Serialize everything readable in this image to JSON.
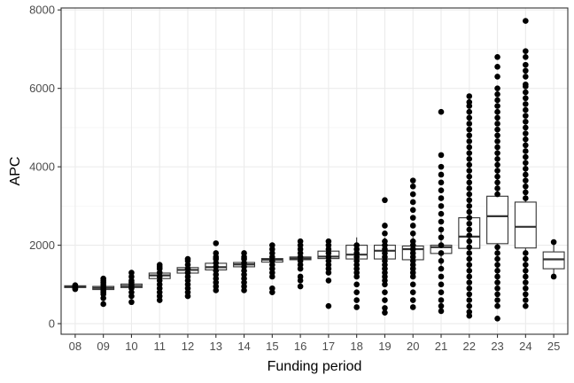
{
  "chart_data": {
    "type": "box",
    "xlabel": "Funding period",
    "ylabel": "APC",
    "ylim": [
      -270,
      8050
    ],
    "yticks": [
      0,
      2000,
      4000,
      6000,
      8000
    ],
    "grid": true,
    "theme": "bw",
    "categories": [
      "08",
      "09",
      "10",
      "11",
      "12",
      "13",
      "14",
      "15",
      "16",
      "17",
      "18",
      "19",
      "20",
      "21",
      "22",
      "23",
      "24",
      "25"
    ],
    "boxes": [
      {
        "period": "08",
        "whisker_low": 900,
        "q1": 920,
        "median": 945,
        "q3": 965,
        "whisker_high": 985
      },
      {
        "period": "09",
        "whisker_low": 800,
        "q1": 870,
        "median": 910,
        "q3": 950,
        "whisker_high": 1000
      },
      {
        "period": "10",
        "whisker_low": 850,
        "q1": 920,
        "median": 960,
        "q3": 1010,
        "whisker_high": 1080
      },
      {
        "period": "11",
        "whisker_low": 1050,
        "q1": 1150,
        "median": 1230,
        "q3": 1290,
        "whisker_high": 1380
      },
      {
        "period": "12",
        "whisker_low": 1150,
        "q1": 1290,
        "median": 1370,
        "q3": 1430,
        "whisker_high": 1550
      },
      {
        "period": "13",
        "whisker_low": 1250,
        "q1": 1370,
        "median": 1440,
        "q3": 1540,
        "whisker_high": 1650
      },
      {
        "period": "14",
        "whisker_low": 1350,
        "q1": 1450,
        "median": 1510,
        "q3": 1560,
        "whisker_high": 1650
      },
      {
        "period": "15",
        "whisker_low": 1450,
        "q1": 1570,
        "median": 1630,
        "q3": 1660,
        "whisker_high": 1750
      },
      {
        "period": "16",
        "whisker_low": 1550,
        "q1": 1630,
        "median": 1660,
        "q3": 1700,
        "whisker_high": 1800
      },
      {
        "period": "17",
        "whisker_low": 1500,
        "q1": 1660,
        "median": 1710,
        "q3": 1850,
        "whisker_high": 2000
      },
      {
        "period": "18",
        "whisker_low": 1400,
        "q1": 1650,
        "median": 1760,
        "q3": 2000,
        "whisker_high": 2200
      },
      {
        "period": "19",
        "whisker_low": 1300,
        "q1": 1650,
        "median": 1860,
        "q3": 2000,
        "whisker_high": 2200
      },
      {
        "period": "20",
        "whisker_low": 1300,
        "q1": 1630,
        "median": 1900,
        "q3": 1980,
        "whisker_high": 2250
      },
      {
        "period": "21",
        "whisker_low": 1400,
        "q1": 1790,
        "median": 1950,
        "q3": 2000,
        "whisker_high": 2400
      },
      {
        "period": "22",
        "whisker_low": 1000,
        "q1": 1920,
        "median": 2220,
        "q3": 2700,
        "whisker_high": 3200
      },
      {
        "period": "23",
        "whisker_low": 1000,
        "q1": 2040,
        "median": 2740,
        "q3": 3250,
        "whisker_high": 4300
      },
      {
        "period": "24",
        "whisker_low": 1000,
        "q1": 1930,
        "median": 2470,
        "q3": 3100,
        "whisker_high": 4200
      },
      {
        "period": "25",
        "whisker_low": 1200,
        "q1": 1400,
        "median": 1640,
        "q3": 1830,
        "whisker_high": 2080
      }
    ],
    "outliers": {
      "08": [
        880,
        900,
        920,
        940,
        960,
        980
      ],
      "09": [
        500,
        650,
        750,
        800,
        850,
        900,
        950,
        1000,
        1050,
        1100,
        1150
      ],
      "10": [
        550,
        700,
        800,
        900,
        950,
        1000,
        1050,
        1100,
        1200,
        1300
      ],
      "11": [
        600,
        700,
        800,
        900,
        1000,
        1100,
        1200,
        1300,
        1400,
        1450,
        1500
      ],
      "12": [
        700,
        800,
        900,
        1000,
        1100,
        1200,
        1300,
        1400,
        1500,
        1600,
        1650
      ],
      "13": [
        850,
        950,
        1050,
        1150,
        1250,
        1350,
        1450,
        1550,
        1650,
        1700,
        1800,
        2050
      ],
      "14": [
        850,
        950,
        1050,
        1150,
        1250,
        1350,
        1450,
        1550,
        1650,
        1700,
        1800
      ],
      "15": [
        800,
        900,
        1200,
        1300,
        1400,
        1500,
        1600,
        1700,
        1800,
        1900,
        2000
      ],
      "16": [
        950,
        1100,
        1200,
        1400,
        1500,
        1600,
        1700,
        1800,
        1900,
        2000,
        2100
      ],
      "17": [
        450,
        1100,
        1300,
        1400,
        1500,
        1600,
        1700,
        1800,
        1900,
        2000,
        2100
      ],
      "18": [
        420,
        600,
        800,
        1000,
        1200,
        1300,
        1400,
        1500,
        1600,
        1700,
        1800,
        1900,
        2000
      ],
      "19": [
        280,
        400,
        600,
        800,
        1000,
        1100,
        1200,
        1300,
        1400,
        1500,
        1600,
        1700,
        1800,
        1900,
        2000,
        2100,
        2300,
        2500,
        3150
      ],
      "20": [
        420,
        600,
        800,
        1000,
        1200,
        1300,
        1400,
        1500,
        1600,
        1700,
        1800,
        1900,
        2000,
        2100,
        2300,
        2500,
        2700,
        2900,
        3100,
        3300,
        3500,
        3650
      ],
      "21": [
        320,
        450,
        600,
        800,
        1000,
        1200,
        1400,
        1600,
        1800,
        2000,
        2200,
        2400,
        2600,
        2800,
        3000,
        3200,
        3400,
        3600,
        3800,
        4000,
        4300,
        5400
      ],
      "22": [
        200,
        300,
        450,
        600,
        750,
        900,
        1050,
        1200,
        1350,
        1500,
        1650,
        1800,
        1950,
        2100,
        2250,
        2400,
        2550,
        2700,
        2850,
        3000,
        3150,
        3300,
        3450,
        3600,
        3750,
        3900,
        4050,
        4200,
        4350,
        4500,
        4650,
        4800,
        4950,
        5100,
        5250,
        5400,
        5550,
        5650,
        5800
      ],
      "23": [
        130,
        450,
        600,
        750,
        900,
        1050,
        1200,
        1350,
        1500,
        1650,
        1800,
        1950,
        3300,
        3450,
        3600,
        3750,
        3900,
        4050,
        4200,
        4350,
        4500,
        4650,
        4800,
        4950,
        5100,
        5250,
        5400,
        5550,
        5700,
        5850,
        6000,
        6300,
        6550,
        6800
      ],
      "24": [
        450,
        600,
        750,
        900,
        1050,
        1200,
        1350,
        1500,
        1650,
        1800,
        3200,
        3350,
        3500,
        3650,
        3800,
        3950,
        4100,
        4250,
        4400,
        4550,
        4700,
        4850,
        5000,
        5150,
        5300,
        5450,
        5600,
        5750,
        5900,
        6050,
        6100,
        6300,
        6450,
        6600,
        6800,
        6950,
        7720
      ],
      "25": [
        1200,
        2080
      ]
    }
  }
}
